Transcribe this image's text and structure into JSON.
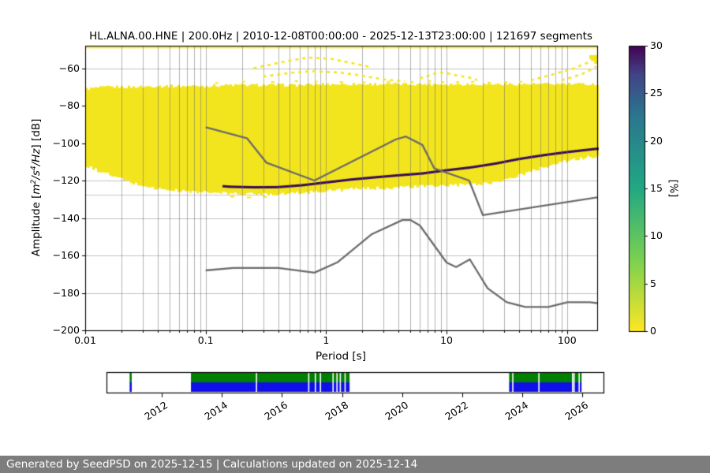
{
  "header": {
    "title": "HL.ALNA.00.HNE | 200.0Hz | 2010-12-08T00:00:00 - 2025-12-13T23:00:00 | 121697 segments",
    "station": "HL.ALNA.00.HNE",
    "sample_rate": "200.0Hz",
    "time_range": "2010-12-08T00:00:00 - 2025-12-13T23:00:00",
    "segments": "121697 segments"
  },
  "footer": {
    "text": "Generated by SeedPSD on 2025-12-15 | Calculations updated on 2025-12-14",
    "bg": "#7d7d7d",
    "fg": "#ffffff"
  },
  "chart_data": {
    "type": "heatmap",
    "title": "HL.ALNA.00.HNE | 200.0Hz | 2010-12-08T00:00:00 - 2025-12-13T23:00:00 | 121697 segments",
    "xlabel": "Period [s]",
    "ylabel": "Amplitude [m^2/s^4/Hz] [dB]",
    "ylabel_parts": [
      {
        "text": "Amplitude [",
        "style": "n"
      },
      {
        "text": "m",
        "style": "i"
      },
      {
        "text": "2",
        "style": "s"
      },
      {
        "text": "/",
        "style": "i"
      },
      {
        "text": "s",
        "style": "i"
      },
      {
        "text": "4",
        "style": "s"
      },
      {
        "text": "/Hz",
        "style": "i"
      },
      {
        "text": "] [dB]",
        "style": "n"
      }
    ],
    "x_axis": {
      "scale": "log",
      "min": 0.01,
      "max": 178,
      "tick_values": [
        0.01,
        0.1,
        1,
        10,
        100
      ],
      "tick_labels": [
        "0.01",
        "0.1",
        "1",
        "10",
        "100"
      ]
    },
    "y_axis": {
      "min": -200,
      "max": -48,
      "tick_values": [
        -60,
        -80,
        -100,
        -120,
        -140,
        -160,
        -180,
        -200
      ],
      "tick_labels": [
        "−60",
        "−80",
        "−100",
        "−120",
        "−140",
        "−160",
        "−180",
        "−200"
      ]
    },
    "colorbar": {
      "label": "[%]",
      "min": 0,
      "max": 30,
      "tick_values": [
        0,
        5,
        10,
        15,
        20,
        25,
        30
      ],
      "tick_labels": [
        "0",
        "5",
        "10",
        "15",
        "20",
        "25",
        "30"
      ],
      "colormap": "viridis_r"
    },
    "grid": {
      "vertical": "log minor + major ticks",
      "horizontal": "20 dB major ticks"
    },
    "distribution": {
      "log10_period": [
        -2.0,
        -1.8,
        -1.6,
        -1.4,
        -1.2,
        -1.0,
        -0.8,
        -0.6,
        -0.4,
        -0.2,
        0.0,
        0.2,
        0.4,
        0.6,
        0.8,
        1.0,
        1.2,
        1.4,
        1.6,
        1.8,
        2.0,
        2.25
      ],
      "top_db": [
        -71,
        -70,
        -70,
        -69.5,
        -69.5,
        -69.5,
        -69,
        -69,
        -69,
        -69,
        -68.5,
        -68.5,
        -68.5,
        -68.5,
        -68.5,
        -68.5,
        -68.5,
        -68.5,
        -68.5,
        -68.5,
        -68.5,
        -68.5
      ],
      "mode_db": [
        -102.5,
        -108,
        -113.5,
        -118.5,
        -121.5,
        -122.3,
        -123.3,
        -123.6,
        -123.5,
        -122.5,
        -121,
        -119.5,
        -118.3,
        -117.2,
        -116.2,
        -114.5,
        -113,
        -111,
        -108.5,
        -106.5,
        -104.8,
        -103
      ],
      "bottom_db": [
        -112,
        -117,
        -121.5,
        -124.5,
        -125.7,
        -126.3,
        -127,
        -127.2,
        -127.2,
        -126.6,
        -125.5,
        -124.7,
        -124.2,
        -123.7,
        -123.2,
        -122.7,
        -122.2,
        -121,
        -117.5,
        -113,
        -109.5,
        -107
      ],
      "core_intensity": [
        0.5,
        0.55,
        0.6,
        0.65,
        0.72,
        0.8,
        0.97,
        1,
        1,
        1,
        1,
        1,
        1,
        1,
        1,
        1,
        1,
        1,
        1,
        1,
        1,
        1
      ],
      "halo_up_db": [
        5.5,
        5,
        4.5,
        4,
        3.2,
        2.6,
        2.2,
        2,
        2,
        2,
        1.9,
        1.8,
        1.8,
        1.8,
        1.8,
        1.8,
        1.9,
        2,
        2.2,
        2.4,
        2.6,
        2.8
      ],
      "halo_dn_db": [
        4,
        3.5,
        3,
        2.5,
        2,
        1.6,
        1.3,
        1.2,
        1.2,
        1.2,
        1.2,
        1.2,
        1.2,
        1.2,
        1.2,
        1.2,
        1.2,
        1.2,
        1.5,
        1.8,
        1.8,
        1.8
      ]
    },
    "top_outlier_row_db": -48.6,
    "floor_line": {
      "period_range": [
        0.01,
        0.31
      ],
      "db": -127.6,
      "color": "#c9c9c9"
    },
    "noise_models": {
      "color": "#6b6b6b",
      "nhnm": [
        [
          0.1,
          -91.5
        ],
        [
          0.22,
          -97.4
        ],
        [
          0.32,
          -110.5
        ],
        [
          0.8,
          -120.0
        ],
        [
          3.8,
          -98.0
        ],
        [
          4.6,
          -96.5
        ],
        [
          6.3,
          -101.0
        ],
        [
          7.9,
          -113.5
        ],
        [
          15.4,
          -120.0
        ],
        [
          20.0,
          -138.5
        ],
        [
          354.8,
          -126.0
        ]
      ],
      "nlnm": [
        [
          0.1,
          -168.0
        ],
        [
          0.17,
          -166.7
        ],
        [
          0.4,
          -166.7
        ],
        [
          0.8,
          -169.2
        ],
        [
          1.24,
          -163.7
        ],
        [
          2.4,
          -148.6
        ],
        [
          4.3,
          -141.1
        ],
        [
          5.0,
          -141.1
        ],
        [
          6.0,
          -144.0
        ],
        [
          10.0,
          -163.8
        ],
        [
          12.0,
          -166.2
        ],
        [
          15.6,
          -162.1
        ],
        [
          21.9,
          -177.5
        ],
        [
          31.6,
          -185.0
        ],
        [
          45.0,
          -187.5
        ],
        [
          70.0,
          -187.5
        ],
        [
          101.0,
          -185.0
        ],
        [
          154.0,
          -185.0
        ],
        [
          328.0,
          -187.5
        ]
      ]
    },
    "speckle_arcs": {
      "arcs": [
        [
          [
            0.25,
            -60
          ],
          [
            0.45,
            -56.5
          ],
          [
            0.7,
            -54.3
          ],
          [
            1.1,
            -55
          ],
          [
            1.7,
            -57.5
          ],
          [
            2.4,
            -59.5
          ]
        ],
        [
          [
            0.3,
            -64.5
          ],
          [
            0.5,
            -62.5
          ],
          [
            0.75,
            -61.6
          ],
          [
            1.3,
            -62.3
          ],
          [
            2.0,
            -64
          ],
          [
            3.0,
            -66
          ],
          [
            4.5,
            -67
          ]
        ],
        [
          [
            6,
            -65.5
          ],
          [
            8,
            -62.8
          ],
          [
            9.5,
            -62.3
          ],
          [
            12,
            -63.8
          ],
          [
            15,
            -64.8
          ],
          [
            18,
            -66.3
          ]
        ],
        [
          [
            50,
            -66.5
          ],
          [
            70,
            -64
          ],
          [
            90,
            -62
          ],
          [
            110,
            -60.5
          ],
          [
            130,
            -58.5
          ],
          [
            150,
            -57
          ],
          [
            165,
            -55
          ],
          [
            174,
            -53.5
          ]
        ],
        [
          [
            90,
            -66.5
          ],
          [
            115,
            -64.5
          ],
          [
            140,
            -62.5
          ],
          [
            160,
            -60.5
          ],
          [
            175,
            -59
          ]
        ]
      ],
      "scatter": [
        [
          0.12,
          -67.5
        ],
        [
          0.2,
          -66.8
        ],
        [
          0.35,
          -67
        ],
        [
          0.55,
          -66.5
        ],
        [
          0.8,
          -66.8
        ],
        [
          1.3,
          -67
        ],
        [
          2,
          -67.2
        ],
        [
          3.2,
          -66.8
        ],
        [
          5,
          -67
        ],
        [
          7,
          -66.5
        ],
        [
          9,
          -67
        ],
        [
          12,
          -67
        ],
        [
          16,
          -66.8
        ],
        [
          22,
          -67.3
        ],
        [
          30,
          -67
        ],
        [
          40,
          -66.8
        ]
      ],
      "corner_blob": [
        [
          160,
          -54
        ],
        [
          168,
          -55.5
        ],
        [
          172,
          -53
        ]
      ]
    },
    "timeline": {
      "xmin": 2010.16,
      "xmax": 2026.7,
      "year_ticks": [
        2012,
        2014,
        2016,
        2018,
        2020,
        2022,
        2024,
        2026
      ],
      "segments": [
        {
          "start": 2010.93,
          "end": 2011.0,
          "gaps": []
        },
        {
          "start": 2012.97,
          "end": 2018.25,
          "gaps": [
            2015.13,
            2016.87,
            2017.09,
            2017.26,
            2017.68,
            2017.81,
            2017.92,
            2018.08
          ]
        },
        {
          "start": 2023.56,
          "end": 2025.97,
          "gaps": [
            2023.66,
            2024.53,
            2025.65,
            2025.7,
            2025.87
          ]
        }
      ],
      "green": "#008000",
      "blue": "#0f0fe8"
    },
    "colors": {
      "yellow_base": "#f3e51d",
      "dark_core": "#3a0c59",
      "grid_h": "#c2c2c2",
      "grid_v": "rgba(105,105,105,0.5)",
      "viridis_r_stops": [
        [
          0,
          "#fde725"
        ],
        [
          0.25,
          "#7ad151"
        ],
        [
          0.5,
          "#22a884"
        ],
        [
          0.75,
          "#2a788e"
        ],
        [
          0.9,
          "#414487"
        ],
        [
          1,
          "#440154"
        ]
      ]
    }
  }
}
